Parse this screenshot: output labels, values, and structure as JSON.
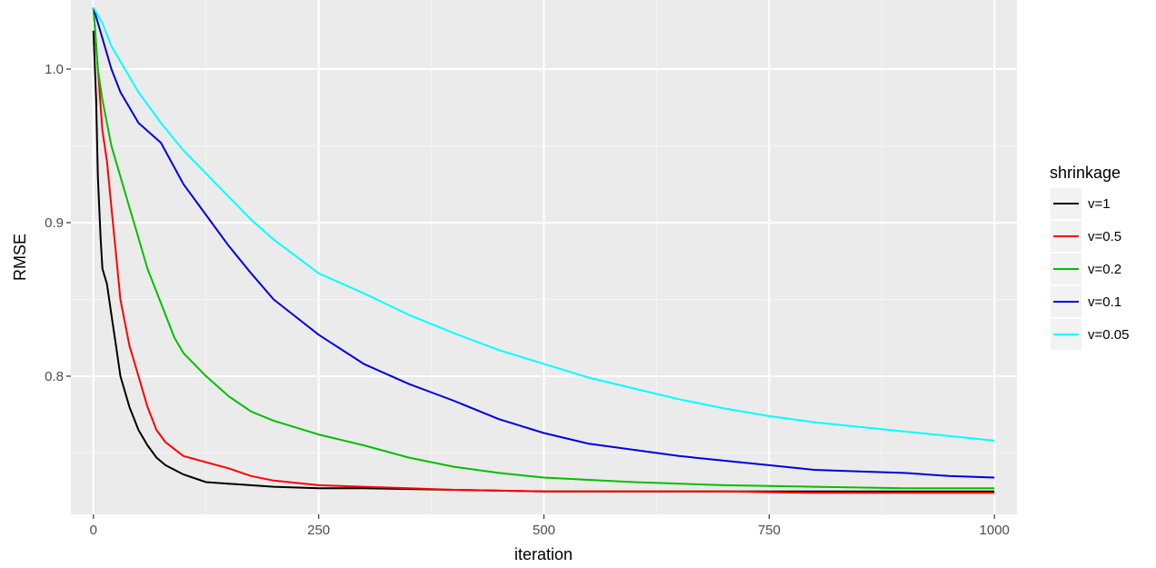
{
  "chart_data": {
    "type": "line",
    "xlabel": "iteration",
    "ylabel": "RMSE",
    "xlim": [
      -25,
      1025
    ],
    "ylim": [
      0.71,
      1.045
    ],
    "x_ticks": [
      0,
      250,
      500,
      750,
      1000
    ],
    "y_ticks": [
      0.8,
      0.9,
      1.0
    ],
    "x_tick_labels": [
      "0",
      "250",
      "500",
      "750",
      "1000"
    ],
    "y_tick_labels": [
      "0.8",
      "0.9",
      "1.0"
    ],
    "grid": true,
    "legend": {
      "title": "shrinkage",
      "placement": "right"
    },
    "series": [
      {
        "name": "v=1",
        "color": "#000000",
        "x": [
          0,
          3,
          5,
          8,
          10,
          15,
          20,
          25,
          30,
          40,
          50,
          60,
          70,
          80,
          100,
          125,
          150,
          200,
          250,
          300,
          400,
          500,
          600,
          700,
          800,
          900,
          1000
        ],
        "y": [
          1.025,
          0.98,
          0.93,
          0.89,
          0.87,
          0.86,
          0.84,
          0.82,
          0.8,
          0.78,
          0.765,
          0.755,
          0.747,
          0.742,
          0.736,
          0.731,
          0.73,
          0.728,
          0.727,
          0.727,
          0.726,
          0.725,
          0.725,
          0.725,
          0.725,
          0.725,
          0.725
        ]
      },
      {
        "name": "v=0.5",
        "color": "#ff0000",
        "x": [
          0,
          5,
          10,
          15,
          20,
          25,
          30,
          40,
          50,
          60,
          70,
          80,
          100,
          125,
          150,
          175,
          200,
          250,
          300,
          350,
          400,
          500,
          600,
          700,
          800,
          900,
          1000
        ],
        "y": [
          1.04,
          1.0,
          0.96,
          0.94,
          0.91,
          0.88,
          0.85,
          0.82,
          0.8,
          0.78,
          0.765,
          0.757,
          0.748,
          0.744,
          0.74,
          0.735,
          0.732,
          0.729,
          0.728,
          0.727,
          0.726,
          0.725,
          0.725,
          0.725,
          0.724,
          0.724,
          0.724
        ]
      },
      {
        "name": "v=0.2",
        "color": "#00c000",
        "x": [
          0,
          5,
          10,
          20,
          30,
          40,
          50,
          60,
          70,
          80,
          90,
          100,
          125,
          150,
          175,
          200,
          250,
          300,
          350,
          400,
          450,
          500,
          600,
          700,
          800,
          900,
          1000
        ],
        "y": [
          1.04,
          1.0,
          0.98,
          0.95,
          0.93,
          0.91,
          0.89,
          0.87,
          0.855,
          0.84,
          0.825,
          0.815,
          0.8,
          0.787,
          0.777,
          0.771,
          0.762,
          0.755,
          0.747,
          0.741,
          0.737,
          0.734,
          0.731,
          0.729,
          0.728,
          0.727,
          0.727
        ]
      },
      {
        "name": "v=0.1",
        "color": "#0000dd",
        "x": [
          0,
          10,
          20,
          30,
          50,
          75,
          100,
          125,
          150,
          175,
          200,
          250,
          300,
          350,
          400,
          450,
          500,
          550,
          600,
          650,
          700,
          750,
          800,
          850,
          900,
          950,
          1000
        ],
        "y": [
          1.04,
          1.02,
          1.0,
          0.985,
          0.965,
          0.952,
          0.925,
          0.905,
          0.885,
          0.867,
          0.85,
          0.827,
          0.808,
          0.795,
          0.784,
          0.772,
          0.763,
          0.756,
          0.752,
          0.748,
          0.745,
          0.742,
          0.739,
          0.738,
          0.737,
          0.735,
          0.734
        ]
      },
      {
        "name": "v=0.05",
        "color": "#00ffff",
        "x": [
          0,
          10,
          20,
          30,
          40,
          50,
          75,
          100,
          125,
          150,
          175,
          200,
          250,
          300,
          350,
          400,
          450,
          500,
          550,
          600,
          650,
          700,
          750,
          800,
          850,
          900,
          950,
          1000
        ],
        "y": [
          1.04,
          1.03,
          1.015,
          1.005,
          0.995,
          0.985,
          0.965,
          0.947,
          0.932,
          0.917,
          0.902,
          0.889,
          0.867,
          0.854,
          0.84,
          0.828,
          0.817,
          0.808,
          0.799,
          0.792,
          0.785,
          0.779,
          0.774,
          0.77,
          0.767,
          0.764,
          0.761,
          0.758
        ]
      }
    ]
  }
}
